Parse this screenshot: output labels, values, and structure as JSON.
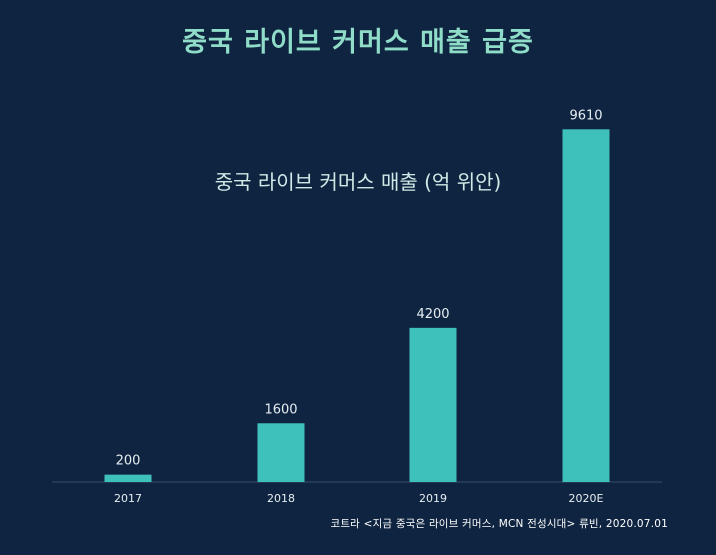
{
  "main_title": "중국 라이브 커머스 매출 급증",
  "source": "코트라 <지금 중국은 라이브 커머스, MCN 전성시대> 류빈, 2020.07.01",
  "colors": {
    "background": "#0f2440",
    "bar": "#3fc1bb",
    "main_title": "#8fdcc8",
    "text": "#e6eef2",
    "axis": "#3a4c6a"
  },
  "chart_data": {
    "type": "bar",
    "title": "중국 라이브 커머스 매출 (억 위안)",
    "categories": [
      "2017",
      "2018",
      "2019",
      "2020E"
    ],
    "values": [
      200,
      1600,
      4200,
      9610
    ],
    "data_labels": [
      "200",
      "1600",
      "4200",
      "9610"
    ],
    "xlabel": "",
    "ylabel": "",
    "ylim": [
      0,
      10000
    ],
    "grid": false,
    "legend": "none"
  }
}
